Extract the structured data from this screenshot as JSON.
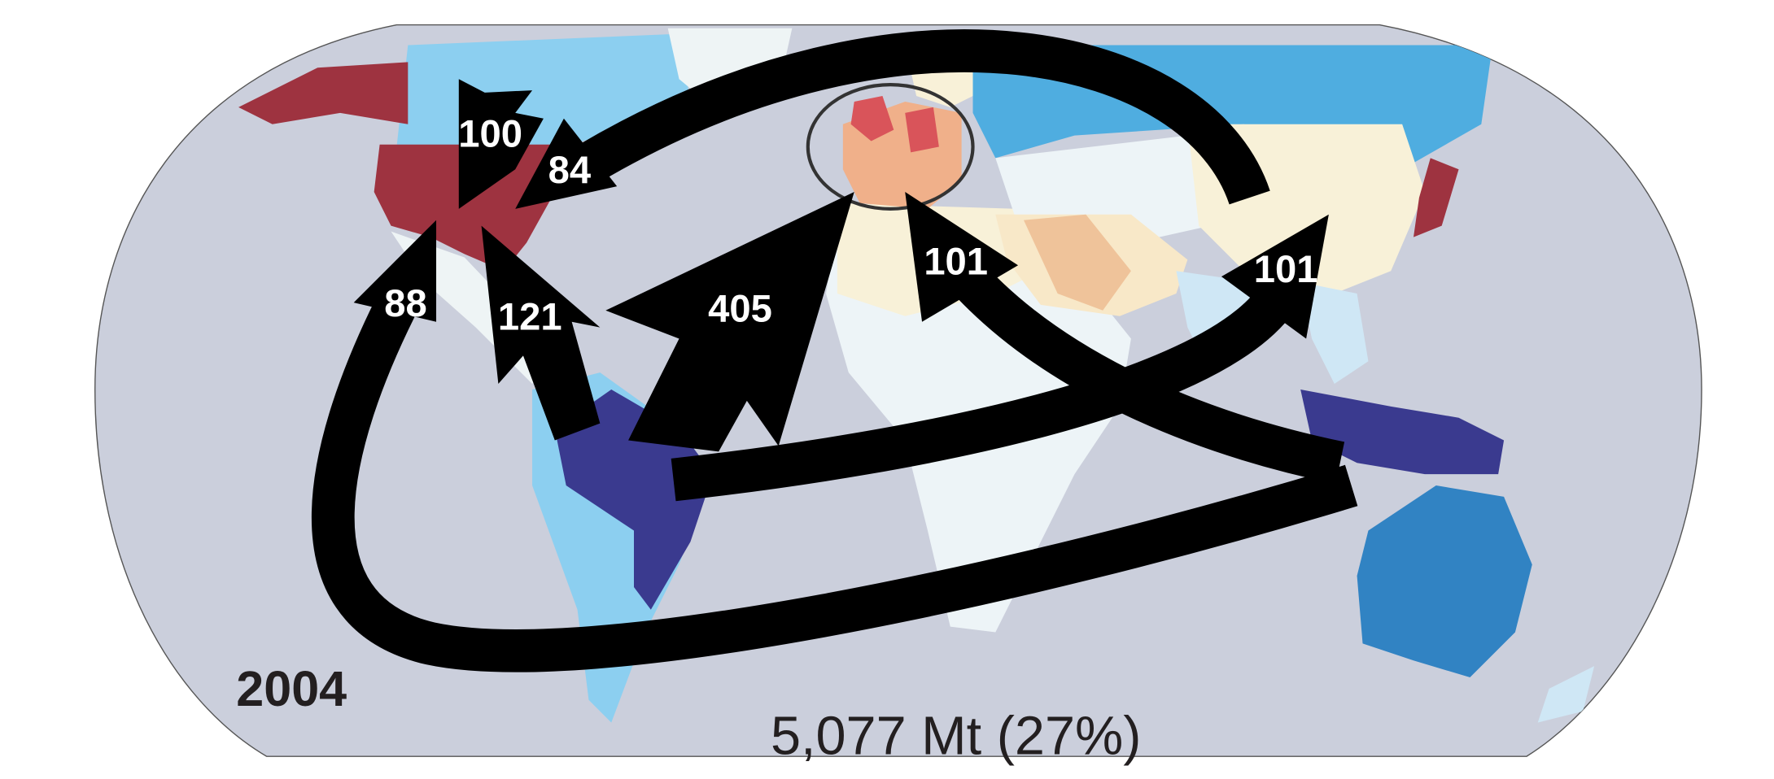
{
  "year_label": "2004",
  "total_label": "5,077 Mt (27%)",
  "flows": [
    {
      "id": "f100",
      "value_label": "100"
    },
    {
      "id": "f84",
      "value_label": "84"
    },
    {
      "id": "f88",
      "value_label": "88"
    },
    {
      "id": "f121",
      "value_label": "121"
    },
    {
      "id": "f405",
      "value_label": "405"
    },
    {
      "id": "f101a",
      "value_label": "101"
    },
    {
      "id": "f101b",
      "value_label": "101"
    }
  ],
  "colors": {
    "ocean": "#cbcfdc",
    "dark_red": "#9e3340",
    "red": "#d9545a",
    "orange": "#f0b08a",
    "tan": "#efc39a",
    "cream": "#f8f1d8",
    "pale": "#edf4f7",
    "light_blue": "#8ccff0",
    "pale_blue": "#cfe7f5",
    "mid_blue": "#4fade0",
    "blue": "#3183c3",
    "navy": "#3a3a8f",
    "arrow": "#000000"
  }
}
